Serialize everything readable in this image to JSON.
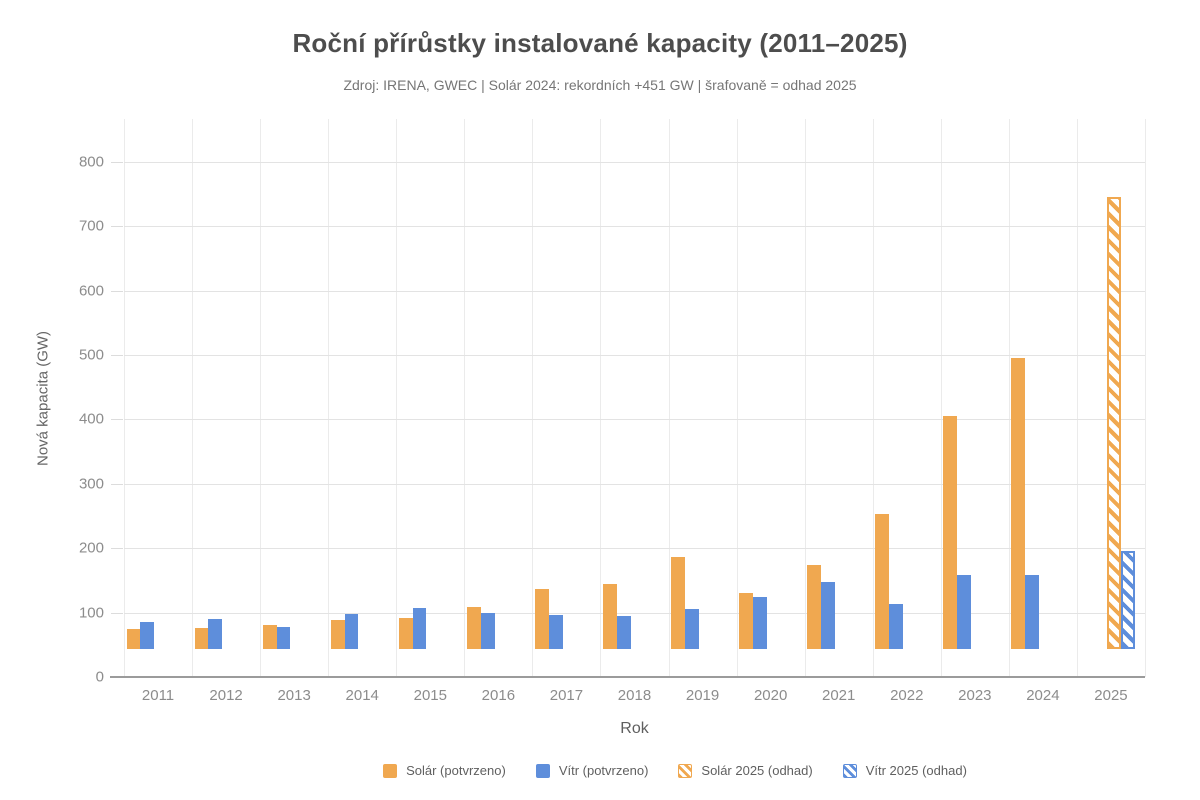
{
  "title": "Roční přírůstky instalované kapacity (2011–2025)",
  "subtitle": "Zdroj: IRENA, GWEC  |  Solár 2024: rekordních +451 GW  |  šrafovaně = odhad 2025",
  "chart_data": {
    "type": "bar",
    "title": "Roční přírůstky instalované kapacity (2011–2025)",
    "xlabel": "Rok",
    "ylabel": "Nová kapacita (GW)",
    "ylim": [
      0,
      865
    ],
    "yticks": [
      0,
      100,
      200,
      300,
      400,
      500,
      600,
      700,
      800
    ],
    "categories": [
      "2011",
      "2012",
      "2013",
      "2014",
      "2015",
      "2016",
      "2017",
      "2018",
      "2019",
      "2020",
      "2021",
      "2022",
      "2023",
      "2024",
      "2025"
    ],
    "series": [
      {
        "name": "Solár (potvrzeno)",
        "style": "solid",
        "color": "#F0A850",
        "values": [
          74,
          76,
          81,
          88,
          92,
          109,
          137,
          145,
          186,
          131,
          174,
          253,
          406,
          495,
          null
        ]
      },
      {
        "name": "Vítr (potvrzeno)",
        "style": "solid",
        "color": "#5E8EDB",
        "values": [
          85,
          90,
          78,
          98,
          107,
          99,
          97,
          95,
          105,
          125,
          148,
          114,
          158,
          158,
          null
        ]
      },
      {
        "name": "Solár 2025 (odhad)",
        "style": "hatched",
        "color": "#F0A850",
        "values": [
          null,
          null,
          null,
          null,
          null,
          null,
          null,
          null,
          null,
          null,
          null,
          null,
          null,
          null,
          745
        ]
      },
      {
        "name": "Vítr 2025 (odhad)",
        "style": "hatched",
        "color": "#5E8EDB",
        "values": [
          null,
          null,
          null,
          null,
          null,
          null,
          null,
          null,
          null,
          null,
          null,
          null,
          null,
          null,
          195
        ]
      }
    ],
    "layout": {
      "grid": true,
      "legend_position": "bottom",
      "bar_baseline_gw": 45,
      "note": "bars float above the zero axis starting near 45 GW"
    }
  }
}
